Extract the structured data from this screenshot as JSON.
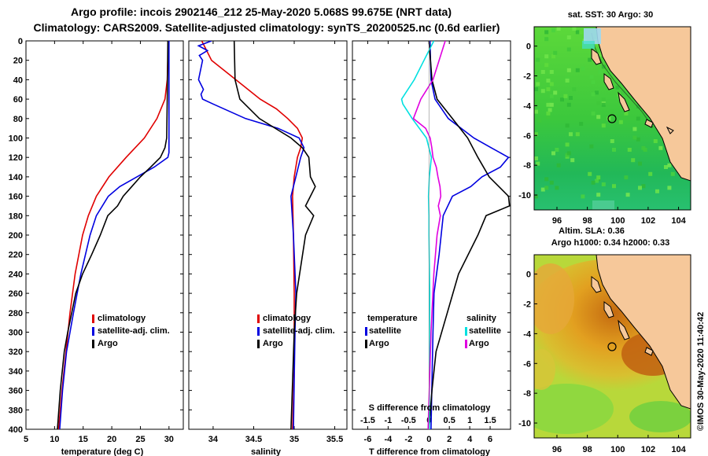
{
  "title": {
    "line1": "Argo profile: incois 2902146_212 25-May-2020 5.068S 99.675E (NRT data)",
    "line2": "Climatology: CARS2009. Satellite-adjusted climatology: synTS_20200525.nc (0.6d earlier)"
  },
  "credit": "©IMOS 30-May-2020 11:40:42",
  "colors": {
    "climatology": "#e00000",
    "satellite": "#0000e0",
    "argo": "#000000",
    "sat_diff": "#00e0e0",
    "argo_sdiff": "#e000e0",
    "ocean": "#2db82d",
    "land": "#f6c89a"
  },
  "chart_data": [
    {
      "type": "line",
      "title": "",
      "xlabel": "temperature (deg C)",
      "ylabel": "",
      "xlim": [
        5,
        32.5
      ],
      "ylim": [
        400,
        0
      ],
      "xticks": [
        "5",
        "10",
        "15",
        "20",
        "25",
        "30"
      ],
      "yticks": [
        "0",
        "20",
        "40",
        "60",
        "80",
        "100",
        "120",
        "140",
        "160",
        "180",
        "200",
        "220",
        "240",
        "260",
        "280",
        "300",
        "320",
        "340",
        "360",
        "380",
        "400"
      ],
      "legend": [
        "climatology",
        "satellite-adj. clim.",
        "Argo"
      ],
      "series": [
        {
          "name": "climatology",
          "depth": [
            0,
            40,
            60,
            80,
            100,
            120,
            140,
            160,
            180,
            200,
            240,
            280,
            320,
            360,
            400
          ],
          "values": [
            29.9,
            29.7,
            29.3,
            27.9,
            25.7,
            22.5,
            19.5,
            17.3,
            15.9,
            14.9,
            13.6,
            12.7,
            12.0,
            11.3,
            10.7
          ]
        },
        {
          "name": "satellite-adj. clim.",
          "depth": [
            0,
            60,
            100,
            115,
            120,
            130,
            140,
            150,
            160,
            180,
            200,
            240,
            280,
            320,
            360,
            400
          ],
          "values": [
            30.0,
            30.0,
            30.0,
            30.0,
            29.8,
            27.4,
            24.4,
            21.4,
            19.4,
            17.3,
            16.2,
            14.6,
            13.3,
            12.1,
            11.4,
            10.9
          ]
        },
        {
          "name": "Argo",
          "depth": [
            0,
            60,
            100,
            110,
            120,
            130,
            140,
            150,
            160,
            170,
            180,
            200,
            220,
            240,
            260,
            280,
            300,
            320,
            360,
            400
          ],
          "values": [
            29.8,
            29.7,
            29.6,
            29.3,
            28.5,
            26.8,
            25.0,
            23.5,
            22.0,
            21.0,
            19.3,
            18.0,
            16.5,
            14.9,
            13.7,
            13.0,
            12.3,
            11.7,
            11.0,
            10.5
          ]
        }
      ]
    },
    {
      "type": "line",
      "title": "",
      "xlabel": "salinity",
      "ylabel": "",
      "xlim": [
        33.7,
        35.65
      ],
      "ylim": [
        400,
        0
      ],
      "xticks": [
        "34",
        "34.5",
        "35",
        "35.5"
      ],
      "legend": [
        "climatology",
        "satellite-adj. clim.",
        "Argo"
      ],
      "series": [
        {
          "name": "climatology",
          "depth": [
            0,
            20,
            40,
            60,
            70,
            80,
            90,
            100,
            110,
            120,
            140,
            160,
            200,
            260,
            300,
            340,
            400
          ],
          "values": [
            33.86,
            33.98,
            34.28,
            34.58,
            34.78,
            34.92,
            35.04,
            35.1,
            35.08,
            35.04,
            35.0,
            34.98,
            34.99,
            35.0,
            35.0,
            35.0,
            34.98
          ]
        },
        {
          "name": "satellite-adj. clim.",
          "depth": [
            0,
            5,
            10,
            15,
            20,
            40,
            50,
            55,
            60,
            65,
            80,
            90,
            100,
            110,
            120,
            140,
            160,
            200,
            260,
            300,
            400
          ],
          "values": [
            33.98,
            33.82,
            33.93,
            33.83,
            33.87,
            33.82,
            33.88,
            33.85,
            33.87,
            34.0,
            34.4,
            34.8,
            35.06,
            35.12,
            35.08,
            35.02,
            34.96,
            34.99,
            35.02,
            35.01,
            34.99
          ]
        },
        {
          "name": "Argo",
          "depth": [
            0,
            40,
            60,
            80,
            100,
            110,
            120,
            140,
            150,
            160,
            170,
            180,
            200,
            260,
            300,
            400
          ],
          "values": [
            34.26,
            34.27,
            34.33,
            34.57,
            34.96,
            35.1,
            35.18,
            35.2,
            35.26,
            35.2,
            35.14,
            35.24,
            35.14,
            35.03,
            35.0,
            34.96
          ]
        }
      ]
    },
    {
      "type": "line",
      "title": "",
      "xlabel": "T difference from climatology",
      "xlabel_top": "S difference from climatology",
      "ylabel": "",
      "xlim": [
        -7.5,
        8.0
      ],
      "xlim_top": [
        -1.875,
        2.0
      ],
      "ylim": [
        400,
        0
      ],
      "xticks": [
        "-6",
        "-4",
        "-2",
        "0",
        "2",
        "4",
        "6"
      ],
      "xticks_top": [
        "-1.5",
        "-1",
        "-0.5",
        "0",
        "0.5",
        "1",
        "1.5"
      ],
      "legend_left_heading": "temperature",
      "legend_right_heading": "salinity",
      "legend": [
        "satellite",
        "Argo",
        "satellite",
        "Argo"
      ],
      "series": [
        {
          "name": "satellite (temperature)",
          "depth": [
            0,
            40,
            60,
            80,
            100,
            110,
            120,
            130,
            140,
            150,
            160,
            180,
            220,
            260,
            300,
            400
          ],
          "values": [
            0.1,
            0.2,
            0.6,
            1.9,
            4.4,
            6.1,
            7.8,
            7.0,
            5.2,
            4.1,
            2.3,
            1.4,
            1.0,
            0.5,
            0.4,
            0.2
          ]
        },
        {
          "name": "Argo (temperature)",
          "depth": [
            0,
            40,
            60,
            80,
            100,
            120,
            140,
            160,
            170,
            180,
            200,
            240,
            280,
            320,
            360,
            400
          ],
          "values": [
            0.0,
            0.3,
            0.8,
            2.3,
            3.8,
            4.8,
            5.9,
            7.8,
            7.9,
            5.6,
            4.8,
            2.9,
            1.8,
            0.7,
            0.3,
            0.0
          ]
        },
        {
          "name": "satellite (salinity)",
          "depth": [
            0,
            20,
            40,
            60,
            65,
            80,
            100,
            120,
            140,
            160,
            180,
            200,
            260,
            320,
            400
          ],
          "values": [
            0.12,
            -0.12,
            -0.36,
            -0.67,
            -0.64,
            -0.41,
            -0.06,
            0.06,
            0.01,
            -0.01,
            0.0,
            0.0,
            0.02,
            0.01,
            0.01
          ]
        },
        {
          "name": "Argo (salinity)",
          "depth": [
            0,
            20,
            40,
            60,
            80,
            90,
            100,
            110,
            120,
            130,
            140,
            150,
            160,
            170,
            180,
            200,
            240,
            300,
            400
          ],
          "values": [
            0.4,
            0.25,
            0.1,
            -0.2,
            -0.38,
            -0.08,
            0.03,
            0.07,
            0.1,
            0.18,
            0.22,
            0.27,
            0.29,
            0.23,
            0.28,
            0.2,
            0.12,
            0.05,
            -0.02
          ]
        }
      ]
    },
    {
      "type": "heatmap",
      "title": "sat. SST: 30 Argo: 30",
      "xlim": [
        94.5,
        104.8
      ],
      "ylim": [
        -11,
        1.3
      ],
      "xticks": [
        "96",
        "98",
        "100",
        "102",
        "104"
      ],
      "yticks": [
        "0",
        "-2",
        "-4",
        "-6",
        "-8",
        "-10"
      ],
      "marker": {
        "lon": 99.675,
        "lat": -5.068
      }
    },
    {
      "type": "heatmap",
      "title": "Altim. SLA: 0.36",
      "subtitle": "Argo h1000: 0.34 h2000: 0.33",
      "xlim": [
        94.5,
        104.8
      ],
      "ylim": [
        -11,
        1.3
      ],
      "xticks": [
        "96",
        "98",
        "100",
        "102",
        "104"
      ],
      "yticks": [
        "0",
        "-2",
        "-4",
        "-6",
        "-8",
        "-10"
      ],
      "marker": {
        "lon": 99.675,
        "lat": -5.068
      }
    }
  ]
}
